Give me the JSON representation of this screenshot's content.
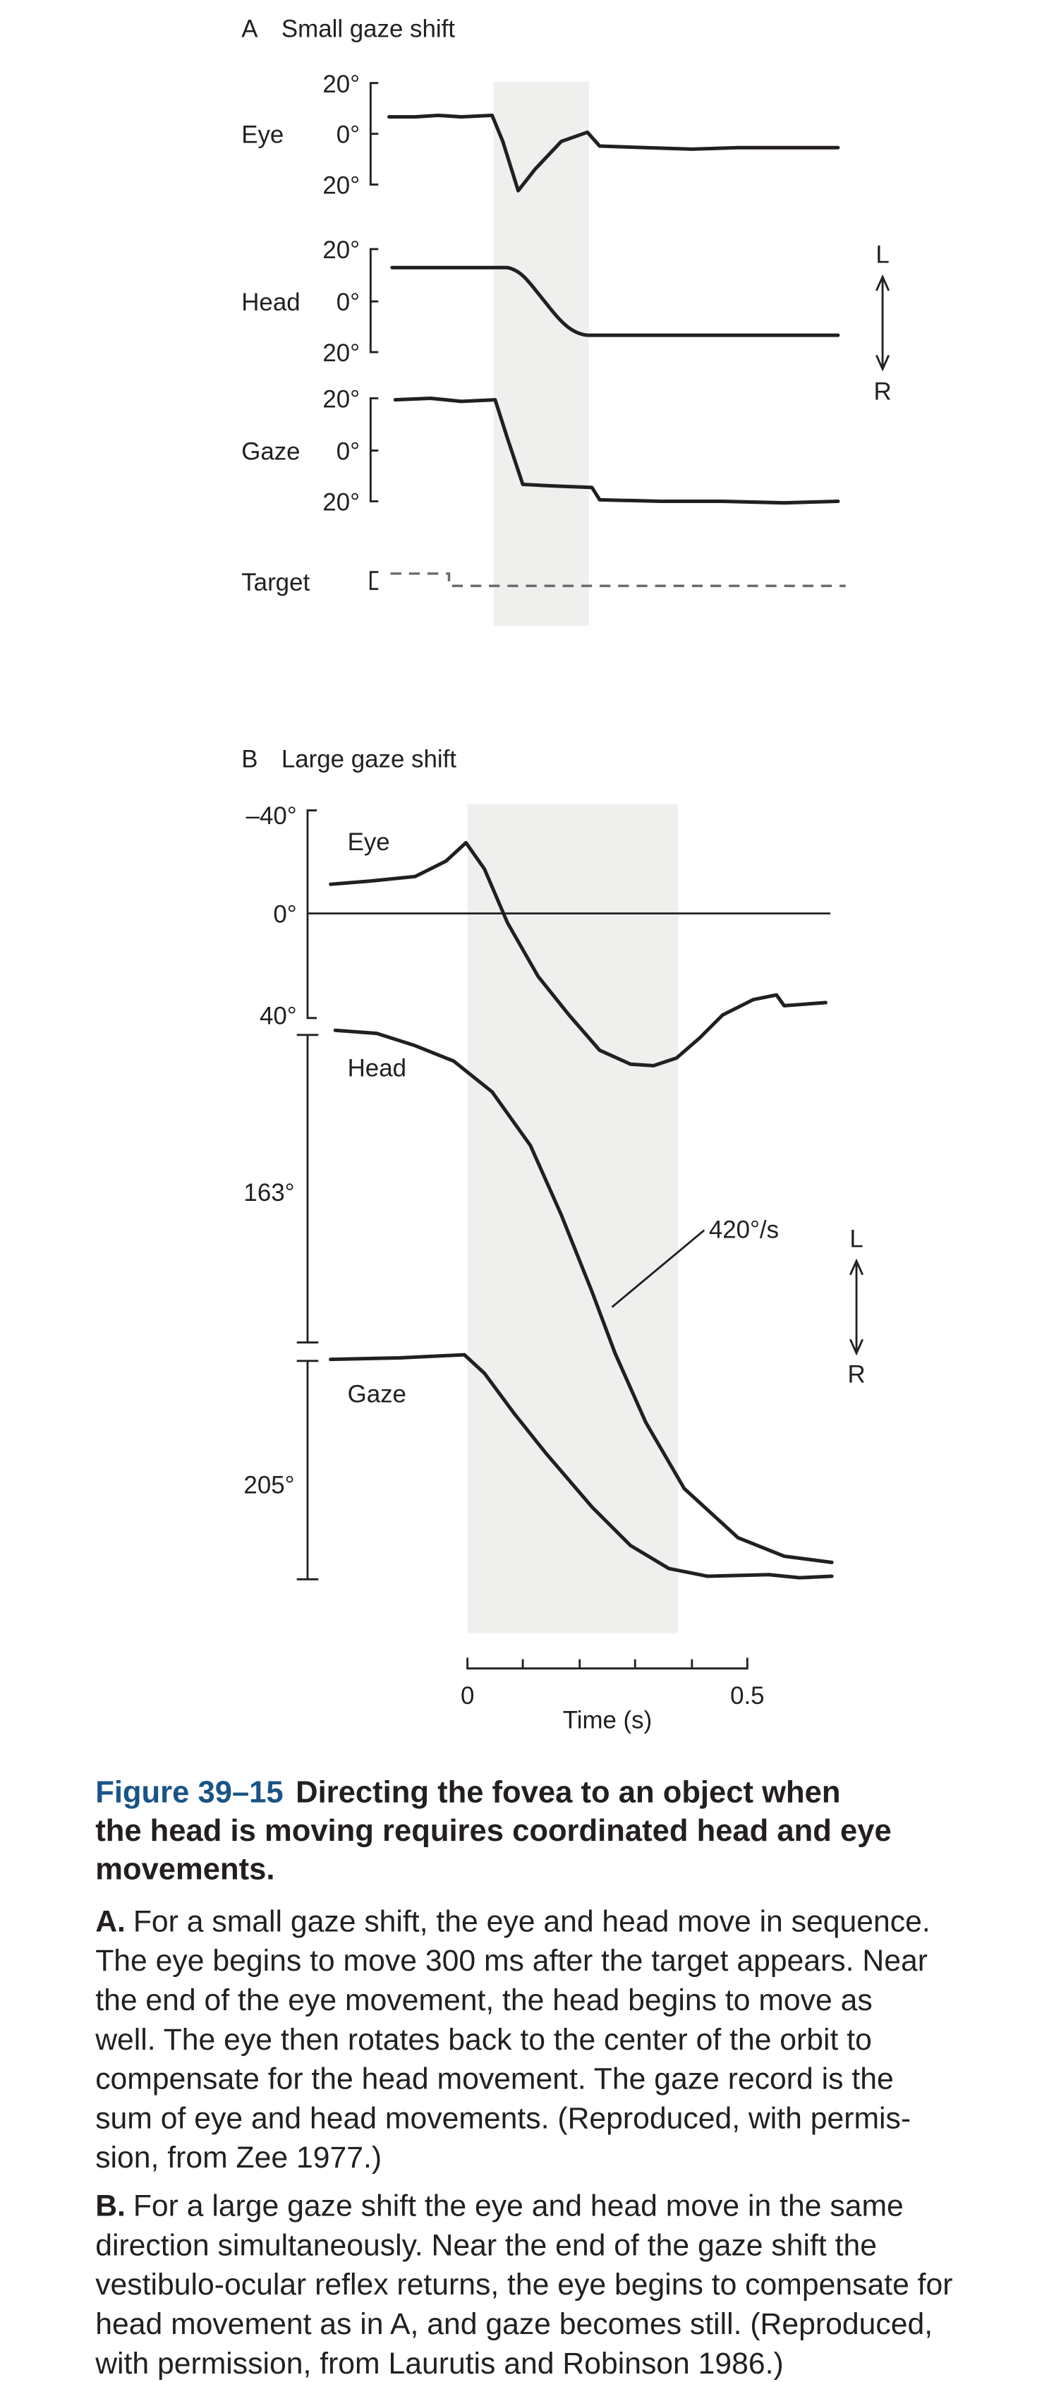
{
  "panel_a": {
    "letter": "A",
    "title": "Small gaze shift",
    "eye": {
      "label": "Eye",
      "scale": [
        "20°",
        "0°",
        "20°"
      ]
    },
    "head": {
      "label": "Head",
      "scale": [
        "20°",
        "0°",
        "20°"
      ]
    },
    "gaze": {
      "label": "Gaze",
      "scale": [
        "20°",
        "0°",
        "20°"
      ]
    },
    "target": {
      "label": "Target"
    },
    "direction": {
      "left": "L",
      "right": "R"
    }
  },
  "panel_b": {
    "letter": "B",
    "title": "Large gaze shift",
    "eye": {
      "label": "Eye",
      "scale": [
        "–40°",
        "0°",
        "40°"
      ]
    },
    "head": {
      "label": "Head",
      "scale": "163°"
    },
    "gaze": {
      "label": "Gaze",
      "scale": "205°"
    },
    "velocity": "420°/s",
    "direction": {
      "left": "L",
      "right": "R"
    },
    "time_axis": {
      "ticks": [
        "0",
        "0.5"
      ],
      "label": "Time (s)"
    }
  },
  "caption": {
    "figure": "Figure 39–15",
    "title_lines": [
      "Directing the fovea to an object when",
      "the head is moving requires coordinated head and eye",
      "movements."
    ],
    "paragraph_a": {
      "label": "A.",
      "lines": [
        "For a small gaze shift, the eye and head move in sequence.",
        "The eye begins to move 300 ms after the target appears. Near",
        "the end of the eye movement, the head begins to move as",
        "well. The eye then rotates back to the center of the orbit to",
        "compensate for the head movement. The gaze record is the",
        "sum of eye and head movements. (Reproduced, with permis-",
        "sion, from Zee 1977.)"
      ]
    },
    "paragraph_b": {
      "label": "B.",
      "lines": [
        "For a large gaze shift the eye and head move in the same",
        "direction simultaneously. Near the end of the gaze shift the",
        "vestibulo-ocular reflex returns, the eye begins to compensate for",
        "head movement as in A, and gaze becomes still. (Reproduced,",
        "with permission, from Laurutis and Robinson 1986.)"
      ]
    }
  }
}
